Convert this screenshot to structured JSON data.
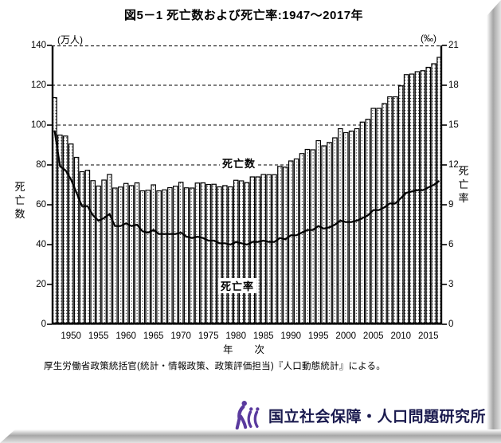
{
  "title": "図5－1 死亡数および死亡率:1947～2017年",
  "source_note": "厚生労働省政策統括官(統計・情報政策、政策評価担当)『人口動態統計』による。",
  "footer": {
    "org_name": "国立社会保障・人口問題研究所",
    "logo_color": "#5a3a9e",
    "text_color": "#1b1b4f"
  },
  "chart_data": {
    "type": "bar",
    "title": "図5－1 死亡数および死亡率:1947～2017年",
    "grid": "dashed-horizontal",
    "left_axis": {
      "unit": "(万人)",
      "label": "死亡数",
      "min": 0,
      "max": 140,
      "ticks": [
        0,
        20,
        40,
        60,
        80,
        100,
        120,
        140
      ]
    },
    "right_axis": {
      "unit": "(‰)",
      "label": "死亡率",
      "min": 0,
      "max": 21,
      "ticks": [
        0,
        3,
        6,
        9,
        12,
        15,
        18,
        21
      ]
    },
    "x_axis": {
      "label": "年次",
      "label_parts": [
        "年",
        "次"
      ],
      "tick_years": [
        1950,
        1955,
        1960,
        1965,
        1970,
        1975,
        1980,
        1985,
        1990,
        1995,
        2000,
        2005,
        2010,
        2015
      ]
    },
    "annotations": {
      "bar_label": "死亡数",
      "line_label": "死亡率"
    },
    "years": [
      1947,
      1948,
      1949,
      1950,
      1951,
      1952,
      1953,
      1954,
      1955,
      1956,
      1957,
      1958,
      1959,
      1960,
      1961,
      1962,
      1963,
      1964,
      1965,
      1966,
      1967,
      1968,
      1969,
      1970,
      1971,
      1972,
      1973,
      1974,
      1975,
      1976,
      1977,
      1978,
      1979,
      1980,
      1981,
      1982,
      1983,
      1984,
      1985,
      1986,
      1987,
      1988,
      1989,
      1990,
      1991,
      1992,
      1993,
      1994,
      1995,
      1996,
      1997,
      1998,
      1999,
      2000,
      2001,
      2002,
      2003,
      2004,
      2005,
      2006,
      2007,
      2008,
      2009,
      2010,
      2011,
      2012,
      2013,
      2014,
      2015,
      2016,
      2017
    ],
    "series": [
      {
        "name": "死亡数",
        "type": "bar",
        "axis": "left",
        "unit": "万人",
        "values": [
          113.8,
          95.0,
          94.5,
          90.5,
          83.8,
          76.6,
          77.3,
          72.1,
          69.4,
          72.4,
          75.2,
          68.4,
          68.9,
          70.7,
          69.6,
          71.0,
          67.0,
          67.3,
          70.0,
          67.0,
          67.5,
          68.6,
          69.3,
          71.3,
          68.5,
          68.4,
          70.9,
          71.0,
          70.2,
          70.3,
          69.0,
          69.6,
          69.0,
          72.3,
          72.0,
          71.1,
          74.0,
          74.0,
          75.2,
          75.1,
          75.1,
          79.3,
          78.9,
          82.0,
          83.0,
          85.7,
          87.8,
          87.6,
          92.2,
          89.6,
          91.3,
          93.6,
          98.2,
          96.2,
          97.0,
          98.2,
          101.5,
          102.9,
          108.4,
          108.4,
          110.8,
          114.2,
          114.2,
          119.7,
          125.3,
          125.6,
          126.8,
          127.3,
          129.0,
          130.8,
          134.0
        ]
      },
      {
        "name": "死亡率",
        "type": "line",
        "axis": "right",
        "unit": "‰",
        "values": [
          14.6,
          11.9,
          11.6,
          10.9,
          9.9,
          8.9,
          8.9,
          8.2,
          7.8,
          8.0,
          8.3,
          7.4,
          7.4,
          7.6,
          7.4,
          7.5,
          7.0,
          6.9,
          7.1,
          6.8,
          6.8,
          6.8,
          6.8,
          6.9,
          6.6,
          6.5,
          6.6,
          6.5,
          6.3,
          6.3,
          6.1,
          6.1,
          6.0,
          6.2,
          6.1,
          6.0,
          6.2,
          6.2,
          6.3,
          6.2,
          6.2,
          6.5,
          6.4,
          6.7,
          6.7,
          6.9,
          7.1,
          7.1,
          7.4,
          7.2,
          7.3,
          7.5,
          7.8,
          7.7,
          7.7,
          7.8,
          8.0,
          8.2,
          8.6,
          8.6,
          8.8,
          9.1,
          9.1,
          9.5,
          9.9,
          10.0,
          10.1,
          10.1,
          10.3,
          10.5,
          10.8
        ]
      }
    ]
  }
}
